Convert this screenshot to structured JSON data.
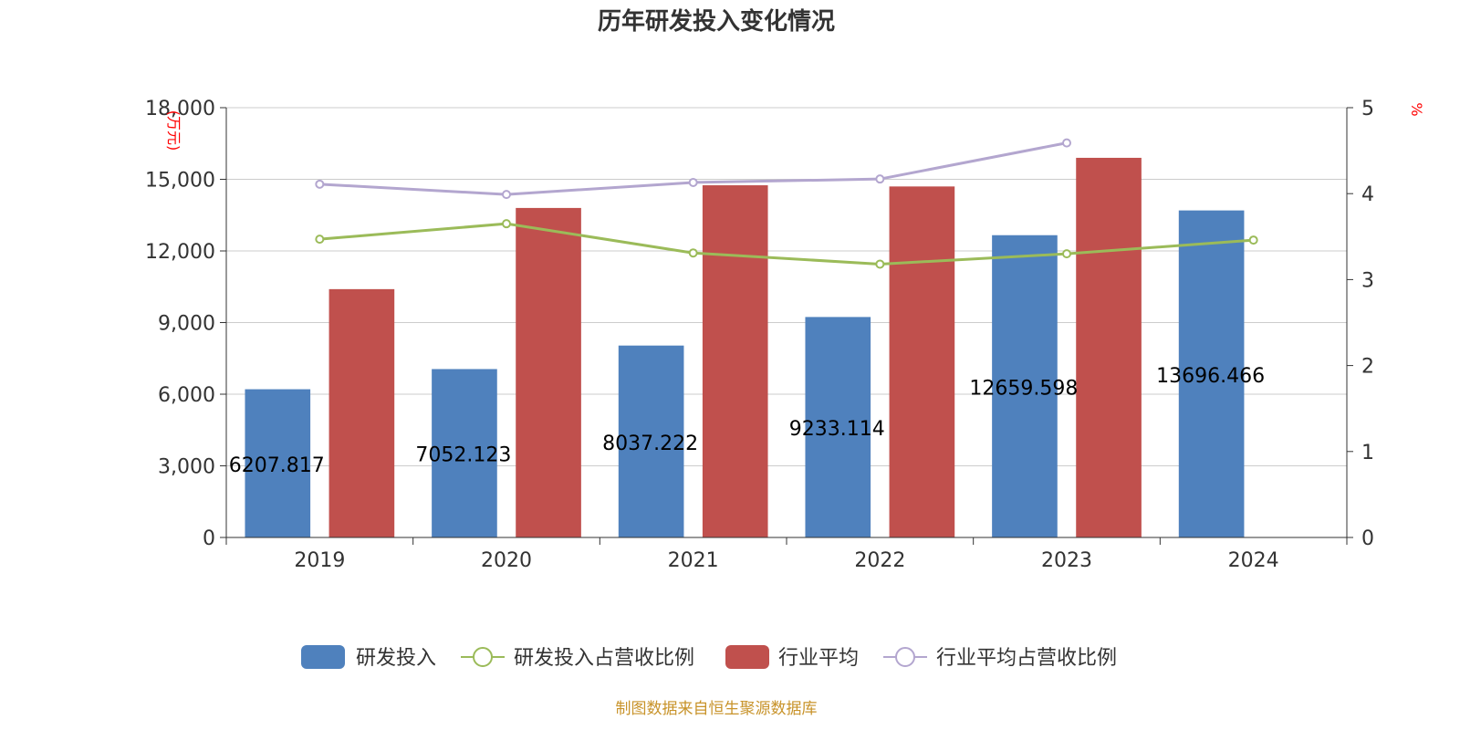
{
  "chart_data": {
    "type": "bar",
    "title": "历年研发投入变化情况",
    "categories": [
      "2019",
      "2020",
      "2021",
      "2022",
      "2023",
      "2024"
    ],
    "y_left": {
      "unit": "(万元)",
      "ylim": [
        0,
        18000
      ],
      "ticks": [
        "0",
        "3,000",
        "6,000",
        "9,000",
        "12,000",
        "15,000",
        "18,000"
      ],
      "tick_values": [
        0,
        3000,
        6000,
        9000,
        12000,
        15000,
        18000
      ]
    },
    "y_right": {
      "unit": "%",
      "ylim": [
        0,
        5
      ],
      "ticks": [
        "0",
        "1",
        "2",
        "3",
        "4",
        "5"
      ],
      "tick_values": [
        0,
        1,
        2,
        3,
        4,
        5
      ]
    },
    "series": [
      {
        "name": "研发投入",
        "kind": "bar",
        "axis": "left",
        "color": "#4f81bd",
        "values": [
          6207.817,
          7052.123,
          8037.222,
          9233.114,
          12659.598,
          13696.466
        ],
        "labels": [
          "6207.817",
          "7052.123",
          "8037.222",
          "9233.114",
          "12659.598",
          "13696.466"
        ]
      },
      {
        "name": "行业平均",
        "kind": "bar",
        "axis": "left",
        "color": "#c0504d",
        "values": [
          10400,
          13800,
          14750,
          14700,
          15900,
          null
        ]
      },
      {
        "name": "研发投入占营收比例",
        "kind": "line",
        "axis": "right",
        "color": "#9bbb59",
        "values": [
          3.47,
          3.65,
          3.31,
          3.18,
          3.3,
          3.46
        ]
      },
      {
        "name": "行业平均占营收比例",
        "kind": "line",
        "axis": "right",
        "color": "#b3a6cf",
        "values": [
          4.11,
          3.99,
          4.13,
          4.17,
          4.59,
          null
        ]
      }
    ],
    "legend": [
      "研发投入",
      "研发投入占营收比例",
      "行业平均",
      "行业平均占营收比例"
    ],
    "grid": true
  },
  "source": "制图数据来自恒生聚源数据库"
}
